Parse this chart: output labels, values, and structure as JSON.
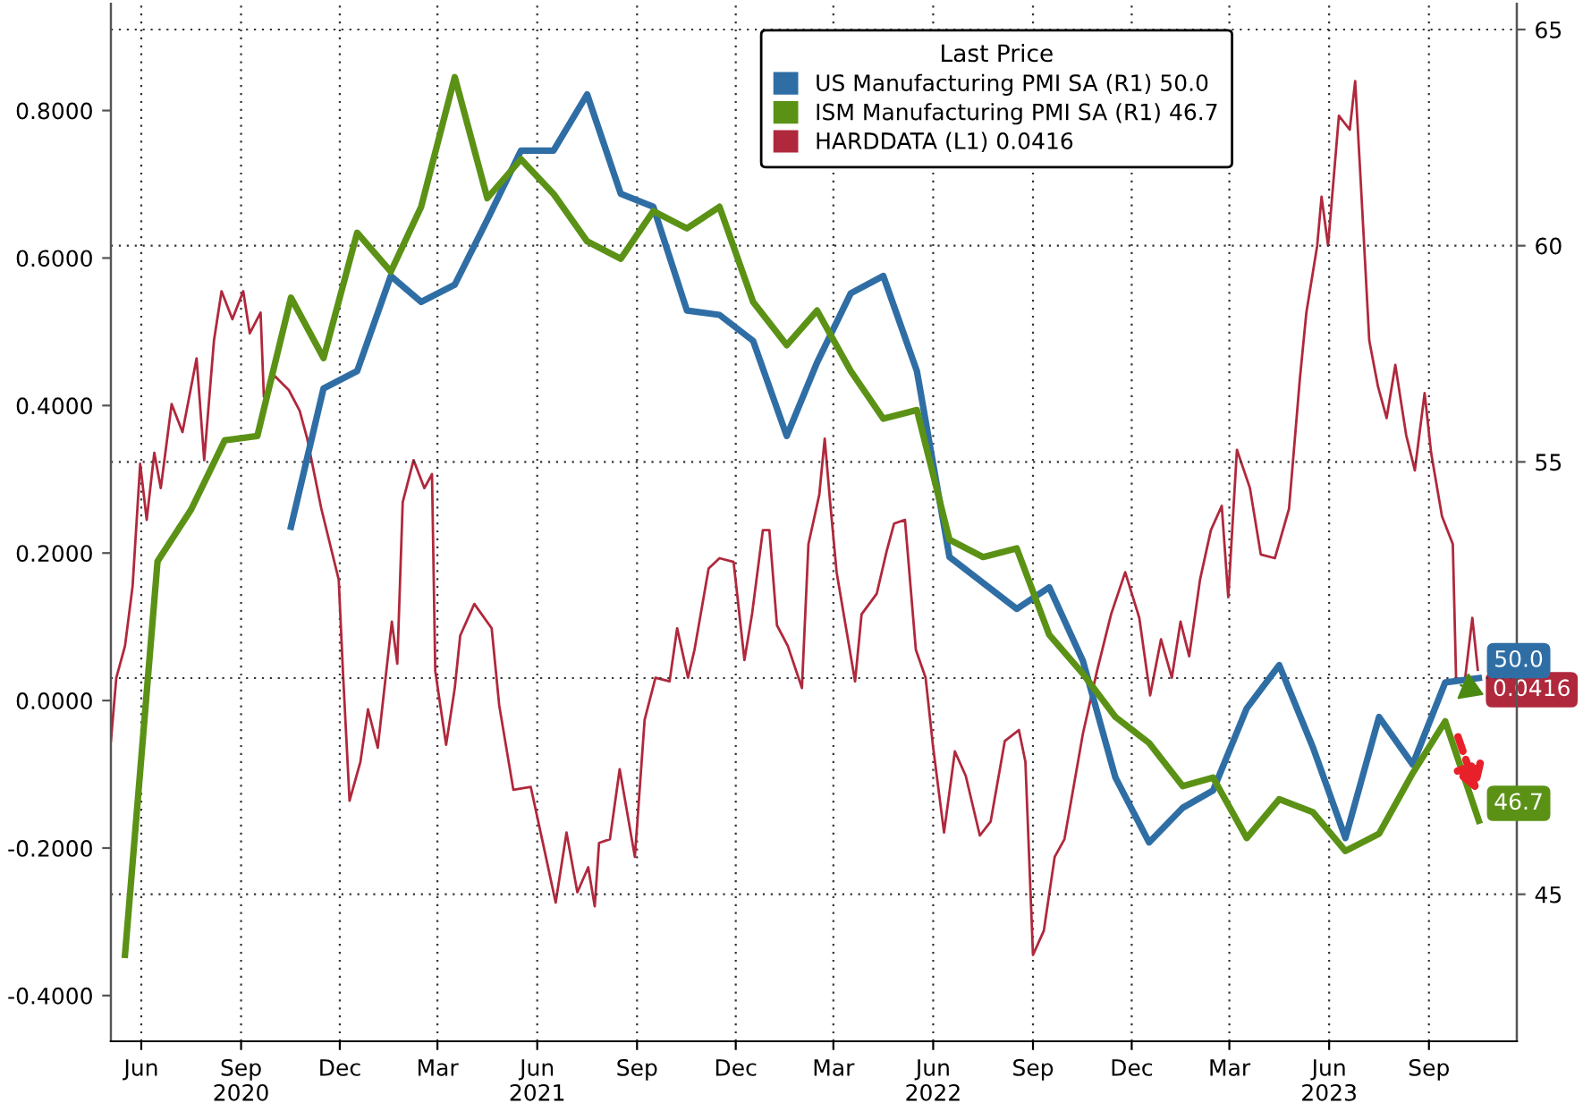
{
  "chart_data": {
    "type": "line",
    "legend_title": "Last Price",
    "legend": "top",
    "grid": true,
    "xlim": [
      "2020-05-18",
      "2023-12-05"
    ],
    "xticks": [
      {
        "value": "2020-06-15",
        "label": "Jun"
      },
      {
        "value": "2020-09-15",
        "label": "Sep\n2020"
      },
      {
        "value": "2020-12-15",
        "label": "Dec"
      },
      {
        "value": "2021-03-15",
        "label": "Mar"
      },
      {
        "value": "2021-06-15",
        "label": "Jun\n2021"
      },
      {
        "value": "2021-09-15",
        "label": "Sep"
      },
      {
        "value": "2021-12-15",
        "label": "Dec"
      },
      {
        "value": "2022-03-15",
        "label": "Mar"
      },
      {
        "value": "2022-06-15",
        "label": "Jun\n2022"
      },
      {
        "value": "2022-09-15",
        "label": "Sep"
      },
      {
        "value": "2022-12-15",
        "label": "Dec"
      },
      {
        "value": "2023-03-15",
        "label": "Mar"
      },
      {
        "value": "2023-06-15",
        "label": "Jun\n2023"
      },
      {
        "value": "2023-09-15",
        "label": "Sep"
      }
    ],
    "ylim": [
      -0.462,
      0.945
    ],
    "yticks": [
      {
        "value": -0.4,
        "label": "-0.4000"
      },
      {
        "value": -0.2,
        "label": "-0.2000"
      },
      {
        "value": 0.0,
        "label": "0.0000"
      },
      {
        "value": 0.2,
        "label": "0.2000"
      },
      {
        "value": 0.4,
        "label": "0.4000"
      },
      {
        "value": 0.6,
        "label": "0.6000"
      },
      {
        "value": 0.8,
        "label": "0.8000"
      }
    ],
    "y2lim": [
      41.6,
      65.6
    ],
    "y2ticks": [
      45,
      {
        "value": 50,
        "label": null
      },
      55,
      60,
      65
    ],
    "series": [
      {
        "name": "US Manufacturing PMI SA (R1) 50.0",
        "color": "#2f6ea5",
        "axis": "y2",
        "x": [
          "2020-10-31",
          "2020-11-30",
          "2020-12-31",
          "2021-01-31",
          "2021-02-28",
          "2021-03-31",
          "2021-04-30",
          "2021-05-31",
          "2021-06-30",
          "2021-07-31",
          "2021-08-31",
          "2021-09-30",
          "2021-10-31",
          "2021-11-30",
          "2021-12-31",
          "2022-01-31",
          "2022-02-28",
          "2022-03-31",
          "2022-04-30",
          "2022-05-31",
          "2022-06-30",
          "2022-07-31",
          "2022-08-31",
          "2022-09-30",
          "2022-10-31",
          "2022-11-30",
          "2022-12-31",
          "2023-01-31",
          "2023-02-28",
          "2023-03-31",
          "2023-04-30",
          "2023-05-31",
          "2023-06-30",
          "2023-07-31",
          "2023-08-31",
          "2023-09-30",
          "2023-10-31"
        ],
        "values": [
          53.5,
          56.7,
          57.1,
          59.3,
          58.7,
          59.1,
          60.6,
          62.2,
          62.2,
          63.5,
          61.2,
          60.9,
          58.5,
          58.4,
          57.8,
          55.6,
          57.3,
          58.9,
          59.3,
          57.1,
          52.8,
          52.2,
          51.6,
          52.1,
          50.4,
          47.7,
          46.2,
          47.0,
          47.4,
          49.3,
          50.3,
          48.4,
          46.3,
          49.1,
          48.0,
          49.9,
          50.0
        ],
        "value_labels": [
          null,
          null,
          null,
          null,
          null,
          null,
          null,
          null,
          null,
          null,
          null,
          null,
          null,
          null,
          null,
          null,
          null,
          null,
          null,
          null,
          null,
          null,
          null,
          null,
          null,
          null,
          null,
          null,
          null,
          null,
          null,
          null,
          null,
          null,
          null,
          null,
          "50.0"
        ]
      },
      {
        "name": "ISM Manufacturing PMI SA (R1) 46.7",
        "color": "#5b9216",
        "axis": "y2",
        "x": [
          "2020-05-31",
          "2020-06-30",
          "2020-07-31",
          "2020-08-31",
          "2020-09-30",
          "2020-10-31",
          "2020-11-30",
          "2020-12-31",
          "2021-01-31",
          "2021-02-28",
          "2021-03-31",
          "2021-04-30",
          "2021-05-31",
          "2021-06-30",
          "2021-07-31",
          "2021-08-31",
          "2021-09-30",
          "2021-10-31",
          "2021-11-30",
          "2021-12-31",
          "2022-01-31",
          "2022-02-28",
          "2022-03-31",
          "2022-04-30",
          "2022-05-31",
          "2022-06-30",
          "2022-07-31",
          "2022-08-31",
          "2022-09-30",
          "2022-10-31",
          "2022-11-30",
          "2022-12-31",
          "2023-01-31",
          "2023-02-28",
          "2023-03-31",
          "2023-04-30",
          "2023-05-31",
          "2023-06-30",
          "2023-07-31",
          "2023-08-31",
          "2023-09-30",
          "2023-10-31"
        ],
        "values": [
          43.6,
          52.7,
          53.9,
          55.5,
          55.6,
          58.8,
          57.4,
          60.3,
          59.4,
          60.9,
          63.9,
          61.1,
          62.0,
          61.2,
          60.1,
          59.7,
          60.8,
          60.4,
          60.9,
          58.7,
          57.7,
          58.5,
          57.1,
          56.0,
          56.2,
          53.2,
          52.8,
          53.0,
          51.0,
          50.1,
          49.1,
          48.5,
          47.5,
          47.7,
          46.3,
          47.2,
          46.9,
          46.0,
          46.4,
          47.8,
          49.0,
          46.7
        ],
        "value_labels": [
          null,
          null,
          null,
          null,
          null,
          null,
          null,
          null,
          null,
          null,
          null,
          null,
          null,
          null,
          null,
          null,
          null,
          null,
          null,
          null,
          null,
          null,
          null,
          null,
          null,
          null,
          null,
          null,
          null,
          null,
          null,
          null,
          null,
          null,
          null,
          null,
          null,
          null,
          null,
          null,
          null,
          "46.7"
        ]
      },
      {
        "name": "HARDDATA (L1) 0.0416",
        "color": "#b0283c",
        "axis": "y",
        "x": [
          "2020-05-18",
          "2020-05-23",
          "2020-05-31",
          "2020-06-07",
          "2020-06-14",
          "2020-06-20",
          "2020-06-27",
          "2020-07-03",
          "2020-07-13",
          "2020-07-23",
          "2020-08-05",
          "2020-08-12",
          "2020-08-21",
          "2020-08-28",
          "2020-09-07",
          "2020-09-17",
          "2020-09-23",
          "2020-10-03",
          "2020-10-06",
          "2020-10-16",
          "2020-10-29",
          "2020-11-08",
          "2020-11-15",
          "2020-11-28",
          "2020-12-14",
          "2020-12-18",
          "2020-12-24",
          "2021-01-03",
          "2021-01-10",
          "2021-01-19",
          "2021-02-01",
          "2021-02-06",
          "2021-02-11",
          "2021-02-21",
          "2021-03-03",
          "2021-03-10",
          "2021-03-13",
          "2021-03-23",
          "2021-03-31",
          "2021-04-05",
          "2021-04-18",
          "2021-05-04",
          "2021-05-11",
          "2021-05-24",
          "2021-06-09",
          "2021-06-23",
          "2021-07-02",
          "2021-07-12",
          "2021-07-22",
          "2021-08-01",
          "2021-08-07",
          "2021-08-11",
          "2021-08-21",
          "2021-08-30",
          "2021-09-13",
          "2021-09-22",
          "2021-10-02",
          "2021-10-15",
          "2021-10-22",
          "2021-11-01",
          "2021-11-07",
          "2021-11-20",
          "2021-11-30",
          "2021-12-13",
          "2021-12-23",
          "2021-12-30",
          "2022-01-09",
          "2022-01-15",
          "2022-01-22",
          "2022-02-01",
          "2022-02-14",
          "2022-02-20",
          "2022-03-02",
          "2022-03-07",
          "2022-03-12",
          "2022-03-18",
          "2022-04-04",
          "2022-04-10",
          "2022-04-24",
          "2022-05-03",
          "2022-05-10",
          "2022-05-20",
          "2022-05-30",
          "2022-06-08",
          "2022-06-15",
          "2022-06-25",
          "2022-07-05",
          "2022-07-15",
          "2022-07-28",
          "2022-08-07",
          "2022-08-20",
          "2022-09-02",
          "2022-09-08",
          "2022-09-15",
          "2022-09-25",
          "2022-10-05",
          "2022-10-14",
          "2022-10-31",
          "2022-11-13",
          "2022-11-26",
          "2022-12-09",
          "2022-12-22",
          "2023-01-01",
          "2023-01-11",
          "2023-01-21",
          "2023-01-29",
          "2023-02-06",
          "2023-02-16",
          "2023-02-26",
          "2023-03-08",
          "2023-03-14",
          "2023-03-22",
          "2023-04-03",
          "2023-04-13",
          "2023-04-26",
          "2023-05-09",
          "2023-05-19",
          "2023-05-25",
          "2023-06-04",
          "2023-06-08",
          "2023-06-14",
          "2023-06-24",
          "2023-07-04",
          "2023-07-09",
          "2023-07-14",
          "2023-07-22",
          "2023-07-30",
          "2023-08-07",
          "2023-08-15",
          "2023-08-25",
          "2023-09-02",
          "2023-09-11",
          "2023-09-17",
          "2023-09-27",
          "2023-10-07",
          "2023-10-10",
          "2023-10-18",
          "2023-10-25",
          "2023-10-30"
        ],
        "values": [
          -0.055,
          0.031,
          0.074,
          0.155,
          0.321,
          0.245,
          0.336,
          0.288,
          0.402,
          0.364,
          0.464,
          0.326,
          0.488,
          0.555,
          0.517,
          0.555,
          0.498,
          0.526,
          0.412,
          0.44,
          0.421,
          0.393,
          0.355,
          0.26,
          0.164,
          0.036,
          -0.136,
          -0.083,
          -0.012,
          -0.064,
          0.107,
          0.05,
          0.269,
          0.326,
          0.288,
          0.307,
          0.04,
          -0.06,
          0.017,
          0.088,
          0.131,
          0.098,
          -0.007,
          -0.121,
          -0.117,
          -0.212,
          -0.274,
          -0.179,
          -0.26,
          -0.226,
          -0.279,
          -0.193,
          -0.188,
          -0.093,
          -0.212,
          -0.026,
          0.031,
          0.026,
          0.098,
          0.031,
          0.069,
          0.179,
          0.193,
          0.188,
          0.055,
          0.117,
          0.231,
          0.231,
          0.102,
          0.074,
          0.017,
          0.212,
          0.279,
          0.355,
          0.269,
          0.174,
          0.026,
          0.117,
          0.145,
          0.202,
          0.24,
          0.245,
          0.069,
          0.031,
          -0.064,
          -0.179,
          -0.069,
          -0.102,
          -0.183,
          -0.164,
          -0.055,
          -0.04,
          -0.083,
          -0.345,
          -0.312,
          -0.212,
          -0.188,
          -0.045,
          0.04,
          0.117,
          0.174,
          0.112,
          0.007,
          0.083,
          0.031,
          0.107,
          0.06,
          0.164,
          0.231,
          0.264,
          0.14,
          0.34,
          0.288,
          0.198,
          0.193,
          0.26,
          0.436,
          0.526,
          0.617,
          0.683,
          0.617,
          0.793,
          0.774,
          0.84,
          0.707,
          0.488,
          0.426,
          0.383,
          0.455,
          0.36,
          0.312,
          0.417,
          0.336,
          0.25,
          0.212,
          0.031,
          0.026,
          0.112,
          0.0416
        ],
        "value_labels": [
          null,
          null,
          null,
          null,
          null,
          null,
          null,
          null,
          null,
          null,
          null,
          null,
          null,
          null,
          null,
          null,
          null,
          null,
          null,
          null,
          null,
          null,
          null,
          null,
          null,
          null,
          null,
          null,
          null,
          null,
          null,
          null,
          null,
          null,
          null,
          null,
          null,
          null,
          null,
          null,
          null,
          null,
          null,
          null,
          null,
          null,
          null,
          null,
          null,
          null,
          null,
          null,
          null,
          null,
          null,
          null,
          null,
          null,
          null,
          null,
          null,
          null,
          null,
          null,
          null,
          null,
          null,
          null,
          null,
          null,
          null,
          null,
          null,
          null,
          null,
          null,
          null,
          null,
          null,
          null,
          null,
          null,
          null,
          null,
          null,
          null,
          null,
          null,
          null,
          null,
          null,
          null,
          null,
          null,
          null,
          null,
          null,
          null,
          null,
          null,
          null,
          null,
          null,
          null,
          null,
          null,
          null,
          null,
          null,
          null,
          null,
          null,
          null,
          null,
          null,
          null,
          null,
          null,
          null,
          null,
          null,
          null,
          null,
          null,
          null,
          null,
          null,
          null,
          null,
          null,
          null,
          null,
          null,
          null,
          null,
          null,
          null,
          null,
          "0.0416"
        ]
      }
    ]
  }
}
